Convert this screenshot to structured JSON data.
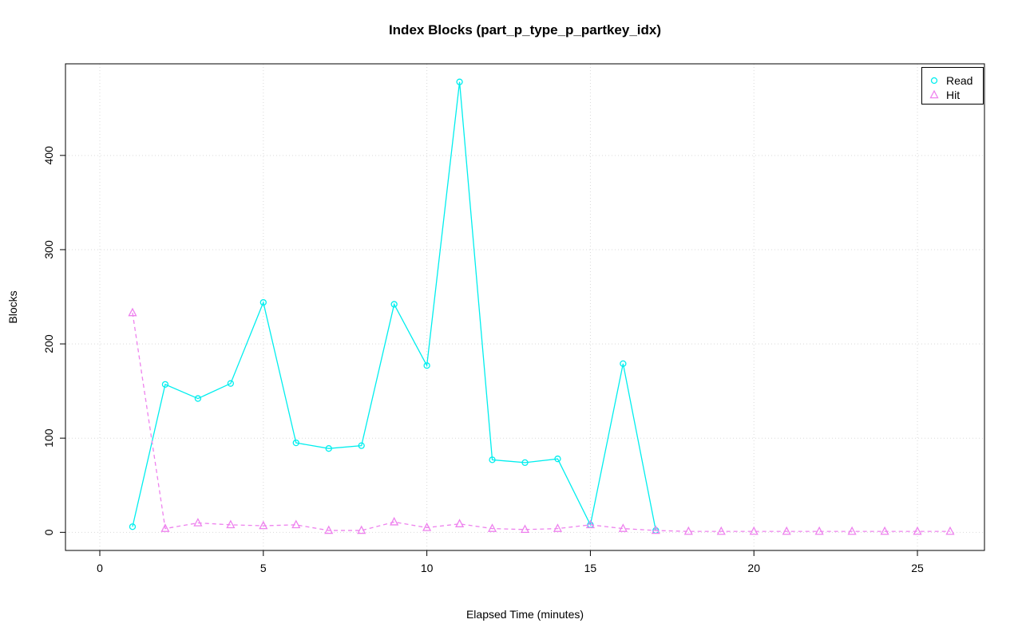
{
  "page": {
    "background": "#ffffff"
  },
  "chart_data": {
    "type": "line",
    "title": "Index Blocks (part_p_type_p_partkey_idx)",
    "xlabel": "Elapsed Time (minutes)",
    "ylabel": "Blocks",
    "x_ticks": [
      0,
      5,
      10,
      15,
      20,
      25
    ],
    "y_ticks": [
      0,
      100,
      200,
      300,
      400
    ],
    "xlim": [
      -1.05,
      27.05
    ],
    "ylim": [
      -19.2,
      497.2
    ],
    "grid": "dotted-lightgray",
    "legend_position": "top-right",
    "series": [
      {
        "name": "Read",
        "color": "#00EEEE",
        "marker": "circle",
        "line_style": "solid",
        "x": [
          1,
          2,
          3,
          4,
          5,
          6,
          7,
          8,
          9,
          10,
          11,
          12,
          13,
          14,
          15,
          16,
          17
        ],
        "y": [
          6,
          157,
          142,
          158,
          244,
          95,
          89,
          92,
          242,
          177,
          478,
          77,
          74,
          78,
          8,
          179,
          2
        ]
      },
      {
        "name": "Hit",
        "color": "#EE82EE",
        "marker": "triangle",
        "line_style": "dashed",
        "x": [
          1,
          2,
          3,
          4,
          5,
          6,
          7,
          8,
          9,
          10,
          11,
          12,
          13,
          14,
          15,
          16,
          17,
          18,
          19,
          20,
          21,
          22,
          23,
          24,
          25,
          26
        ],
        "y": [
          233,
          4,
          10,
          8,
          7,
          8,
          2,
          2,
          11,
          5,
          9,
          4,
          3,
          4,
          8,
          4,
          2,
          1,
          1,
          1,
          1,
          1,
          1,
          1,
          1,
          1
        ]
      }
    ]
  }
}
